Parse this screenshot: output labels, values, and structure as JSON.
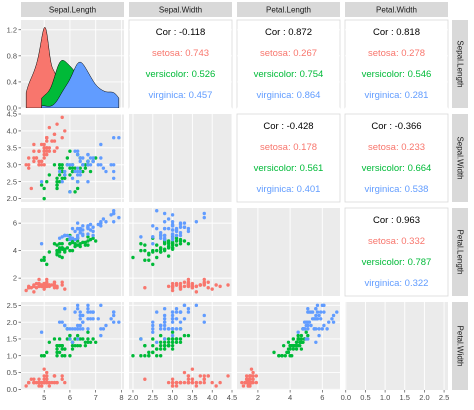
{
  "chart_data": {
    "type": "scatter",
    "variables": [
      "Sepal.Length",
      "Sepal.Width",
      "Petal.Length",
      "Petal.Width"
    ],
    "species": [
      "setosa",
      "versicolor",
      "virginica"
    ],
    "colors": {
      "setosa": "#F8766D",
      "versicolor": "#00BA38",
      "virginica": "#619CFF"
    },
    "ranges": {
      "Sepal.Length": [
        4.1,
        8.1
      ],
      "Sepal.Width": [
        1.9,
        4.5
      ],
      "Petal.Length": [
        0.7,
        7.1
      ],
      "Petal.Width": [
        -0.02,
        2.6
      ]
    },
    "density_axis": [
      0,
      1.35
    ],
    "ticks": {
      "Sepal.Length": [
        5,
        6,
        7,
        8
      ],
      "Sepal.Width": [
        2.0,
        2.5,
        3.0,
        3.5,
        4.0,
        4.5
      ],
      "Petal.Length": [
        2,
        4,
        6
      ],
      "Petal.Width": [
        0.0,
        0.5,
        1.0,
        1.5,
        2.0,
        2.5
      ]
    },
    "density_ticks": [
      0.0,
      0.4,
      0.8,
      1.2
    ],
    "x_tick_labels": {
      "Sepal.Length": [
        "5",
        "6",
        "7",
        "8"
      ],
      "Sepal.Width": [
        "2.0",
        "2.5",
        "3.0",
        "3.5",
        "4.0",
        "4.5"
      ],
      "Petal.Length": [
        "2",
        "4",
        "6"
      ],
      "Petal.Width": [
        "0.0",
        "0.5",
        "1.0",
        "1.5",
        "2.0",
        "2.5"
      ]
    },
    "y_tick_labels": {
      "density": [
        "0.0",
        "0.4",
        "0.8",
        "1.2"
      ],
      "Sepal.Width": [
        "2.0",
        "2.5",
        "3.0",
        "3.5",
        "4.0",
        "4.5"
      ],
      "Petal.Length": [
        "2",
        "4",
        "6"
      ],
      "Petal.Width": [
        "0.0",
        "0.5",
        "1.0",
        "1.5",
        "2.0",
        "2.5"
      ]
    },
    "correlations": [
      {
        "row": 0,
        "col": 1,
        "overall": "Cor : -0.118",
        "setosa": "setosa: 0.743",
        "versicolor": "versicolor: 0.526",
        "virginica": "virginica: 0.457"
      },
      {
        "row": 0,
        "col": 2,
        "overall": "Cor : 0.872",
        "setosa": "setosa: 0.267",
        "versicolor": "versicolor: 0.754",
        "virginica": "virginica: 0.864"
      },
      {
        "row": 0,
        "col": 3,
        "overall": "Cor : 0.818",
        "setosa": "setosa: 0.278",
        "versicolor": "versicolor: 0.546",
        "virginica": "virginica: 0.281"
      },
      {
        "row": 1,
        "col": 2,
        "overall": "Cor : -0.428",
        "setosa": "setosa: 0.178",
        "versicolor": "versicolor: 0.561",
        "virginica": "virginica: 0.401"
      },
      {
        "row": 1,
        "col": 3,
        "overall": "Cor : -0.366",
        "setosa": "setosa: 0.233",
        "versicolor": "versicolor: 0.664",
        "virginica": "virginica: 0.538"
      },
      {
        "row": 2,
        "col": 3,
        "overall": "Cor : 0.963",
        "setosa": "setosa: 0.332",
        "versicolor": "versicolor: 0.787",
        "virginica": "virginica: 0.322"
      }
    ],
    "data": {
      "setosa": {
        "Sepal.Length": [
          5.1,
          4.9,
          4.7,
          4.6,
          5.0,
          5.4,
          4.6,
          5.0,
          4.4,
          4.9,
          5.4,
          4.8,
          4.8,
          4.3,
          5.8,
          5.7,
          5.4,
          5.1,
          5.7,
          5.1,
          5.4,
          5.1,
          4.6,
          5.1,
          4.8,
          5.0,
          5.0,
          5.2,
          5.2,
          4.7,
          4.8,
          5.4,
          5.2,
          5.5,
          4.9,
          5.0,
          5.5,
          4.9,
          4.4,
          5.1,
          5.0,
          4.5,
          4.4,
          5.0,
          5.1,
          4.8,
          5.1,
          4.6,
          5.3,
          5.0
        ],
        "Sepal.Width": [
          3.5,
          3.0,
          3.2,
          3.1,
          3.6,
          3.9,
          3.4,
          3.4,
          2.9,
          3.1,
          3.7,
          3.4,
          3.0,
          3.0,
          4.0,
          4.4,
          3.9,
          3.5,
          3.8,
          3.8,
          3.4,
          3.7,
          3.6,
          3.3,
          3.4,
          3.0,
          3.4,
          3.5,
          3.4,
          3.2,
          3.1,
          3.4,
          4.1,
          4.2,
          3.1,
          3.2,
          3.5,
          3.6,
          3.0,
          3.4,
          3.5,
          2.3,
          3.2,
          3.5,
          3.8,
          3.0,
          3.8,
          3.2,
          3.7,
          3.3
        ],
        "Petal.Length": [
          1.4,
          1.4,
          1.3,
          1.5,
          1.4,
          1.7,
          1.4,
          1.5,
          1.4,
          1.5,
          1.5,
          1.6,
          1.4,
          1.1,
          1.2,
          1.5,
          1.3,
          1.4,
          1.7,
          1.5,
          1.7,
          1.5,
          1.0,
          1.7,
          1.9,
          1.6,
          1.6,
          1.5,
          1.4,
          1.6,
          1.6,
          1.5,
          1.5,
          1.4,
          1.5,
          1.2,
          1.3,
          1.4,
          1.3,
          1.5,
          1.3,
          1.3,
          1.3,
          1.6,
          1.9,
          1.4,
          1.6,
          1.4,
          1.5,
          1.4
        ],
        "Petal.Width": [
          0.2,
          0.2,
          0.2,
          0.2,
          0.2,
          0.4,
          0.3,
          0.2,
          0.2,
          0.1,
          0.2,
          0.2,
          0.1,
          0.1,
          0.2,
          0.4,
          0.4,
          0.3,
          0.3,
          0.3,
          0.2,
          0.4,
          0.2,
          0.5,
          0.2,
          0.2,
          0.4,
          0.2,
          0.2,
          0.2,
          0.2,
          0.4,
          0.1,
          0.2,
          0.2,
          0.2,
          0.2,
          0.1,
          0.2,
          0.2,
          0.3,
          0.3,
          0.2,
          0.6,
          0.4,
          0.3,
          0.2,
          0.2,
          0.2,
          0.2
        ]
      },
      "versicolor": {
        "Sepal.Length": [
          7.0,
          6.4,
          6.9,
          5.5,
          6.5,
          5.7,
          6.3,
          4.9,
          6.6,
          5.2,
          5.0,
          5.9,
          6.0,
          6.1,
          5.6,
          6.7,
          5.6,
          5.8,
          6.2,
          5.6,
          5.9,
          6.1,
          6.3,
          6.1,
          6.4,
          6.6,
          6.8,
          6.7,
          6.0,
          5.7,
          5.5,
          5.5,
          5.8,
          6.0,
          5.4,
          6.0,
          6.7,
          6.3,
          5.6,
          5.5,
          5.5,
          6.1,
          5.8,
          5.0,
          5.6,
          5.7,
          5.7,
          6.2,
          5.1,
          5.7
        ],
        "Sepal.Width": [
          3.2,
          3.2,
          3.1,
          2.3,
          2.8,
          2.8,
          3.3,
          2.4,
          2.9,
          2.7,
          2.0,
          3.0,
          2.2,
          2.9,
          2.9,
          3.1,
          3.0,
          2.7,
          2.2,
          2.5,
          3.2,
          2.8,
          2.5,
          2.8,
          2.9,
          3.0,
          2.8,
          3.0,
          2.9,
          2.6,
          2.4,
          2.4,
          2.7,
          2.7,
          3.0,
          3.4,
          3.1,
          2.3,
          3.0,
          2.5,
          2.6,
          3.0,
          2.6,
          2.3,
          2.7,
          3.0,
          2.9,
          2.9,
          2.5,
          2.8
        ],
        "Petal.Length": [
          4.7,
          4.5,
          4.9,
          4.0,
          4.6,
          4.5,
          4.7,
          3.3,
          4.6,
          3.9,
          3.5,
          4.2,
          4.0,
          4.7,
          3.6,
          4.4,
          4.5,
          4.1,
          4.5,
          3.9,
          4.8,
          4.0,
          4.9,
          4.7,
          4.3,
          4.4,
          4.8,
          5.0,
          4.5,
          3.5,
          3.8,
          3.7,
          3.9,
          5.1,
          4.5,
          4.5,
          4.7,
          4.4,
          4.1,
          4.0,
          4.4,
          4.6,
          4.0,
          3.3,
          4.2,
          4.2,
          4.2,
          4.3,
          3.0,
          4.1
        ],
        "Petal.Width": [
          1.4,
          1.5,
          1.5,
          1.3,
          1.5,
          1.3,
          1.6,
          1.0,
          1.3,
          1.4,
          1.0,
          1.5,
          1.0,
          1.4,
          1.3,
          1.4,
          1.5,
          1.0,
          1.5,
          1.1,
          1.8,
          1.3,
          1.5,
          1.2,
          1.3,
          1.4,
          1.4,
          1.7,
          1.5,
          1.0,
          1.1,
          1.0,
          1.2,
          1.6,
          1.5,
          1.6,
          1.5,
          1.3,
          1.3,
          1.3,
          1.2,
          1.4,
          1.2,
          1.0,
          1.3,
          1.2,
          1.3,
          1.3,
          1.1,
          1.3
        ]
      },
      "virginica": {
        "Sepal.Length": [
          6.3,
          5.8,
          7.1,
          6.3,
          6.5,
          7.6,
          4.9,
          7.3,
          6.7,
          7.2,
          6.5,
          6.4,
          6.8,
          5.7,
          5.8,
          6.4,
          6.5,
          7.7,
          7.7,
          6.0,
          6.9,
          5.6,
          7.7,
          6.3,
          6.7,
          7.2,
          6.2,
          6.1,
          6.4,
          7.2,
          7.4,
          7.9,
          6.4,
          6.3,
          6.1,
          7.7,
          6.3,
          6.4,
          6.0,
          6.9,
          6.7,
          6.9,
          5.8,
          6.8,
          6.7,
          6.7,
          6.3,
          6.5,
          6.2,
          5.9
        ],
        "Sepal.Width": [
          3.3,
          2.7,
          3.0,
          2.9,
          3.0,
          3.0,
          2.5,
          2.9,
          2.5,
          3.6,
          3.2,
          2.7,
          3.0,
          2.5,
          2.8,
          3.2,
          3.0,
          3.8,
          2.6,
          2.2,
          3.2,
          2.8,
          2.8,
          2.7,
          3.3,
          3.2,
          2.8,
          3.0,
          2.8,
          3.0,
          2.8,
          3.8,
          2.8,
          2.8,
          2.6,
          3.0,
          3.4,
          3.1,
          3.0,
          3.1,
          3.1,
          3.1,
          2.7,
          3.2,
          3.3,
          3.0,
          2.5,
          3.0,
          3.4,
          3.0
        ],
        "Petal.Length": [
          6.0,
          5.1,
          5.9,
          5.6,
          5.8,
          6.6,
          4.5,
          6.3,
          5.8,
          6.1,
          5.1,
          5.3,
          5.5,
          5.0,
          5.1,
          5.3,
          5.5,
          6.7,
          6.9,
          5.0,
          5.7,
          4.9,
          6.7,
          4.9,
          5.7,
          6.0,
          4.8,
          4.9,
          5.6,
          5.8,
          6.1,
          6.4,
          5.6,
          5.1,
          5.6,
          6.1,
          5.6,
          5.5,
          4.8,
          5.4,
          5.6,
          5.1,
          5.1,
          5.9,
          5.7,
          5.2,
          5.0,
          5.2,
          5.4,
          5.1
        ],
        "Petal.Width": [
          2.5,
          1.9,
          2.1,
          1.8,
          2.2,
          2.1,
          1.7,
          1.8,
          1.8,
          2.5,
          2.0,
          1.9,
          2.1,
          2.0,
          2.4,
          2.3,
          1.8,
          2.2,
          2.3,
          1.5,
          2.3,
          2.0,
          2.0,
          1.8,
          2.1,
          1.8,
          1.8,
          1.8,
          2.1,
          1.6,
          1.9,
          2.0,
          2.2,
          1.5,
          1.4,
          2.3,
          2.4,
          1.8,
          1.8,
          2.1,
          2.4,
          2.3,
          1.9,
          2.3,
          2.5,
          2.3,
          1.9,
          2.0,
          2.3,
          1.8
        ]
      }
    }
  }
}
